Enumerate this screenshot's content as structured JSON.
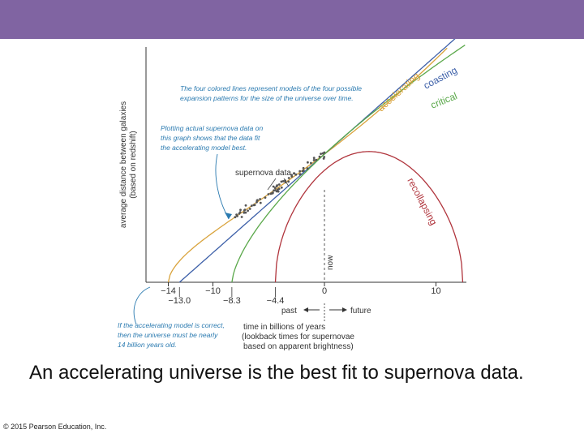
{
  "slide": {
    "caption": "An accelerating universe is the best fit to supernova data.",
    "copyright": "© 2015 Pearson Education, Inc.",
    "header_color": "#8064a2"
  },
  "chart_data": {
    "type": "line",
    "ylabel_line1": "average distance between galaxies",
    "ylabel_line2": "(based on redshift)",
    "xlabel_lines": [
      "time in billions of years",
      "(lookback times for supernovae",
      "based on apparent brightness)"
    ],
    "x_ticks_top": [
      "−14",
      "−10",
      "0",
      "10"
    ],
    "x_ticks_top_values": [
      -14,
      -10,
      0,
      10
    ],
    "x_ticks_bottom": [
      "−13.0",
      "−8.3",
      "−4.4"
    ],
    "x_ticks_bottom_values": [
      -13.0,
      -8.3,
      -4.4
    ],
    "now_label": "now",
    "past_label": "past",
    "future_label": "future",
    "supernova_label": "supernova data",
    "xlim": [
      -15.5,
      13
    ],
    "series": [
      {
        "name": "accelerating",
        "color": "#d9a33c",
        "start": -14,
        "shape": "accelerating"
      },
      {
        "name": "coasting",
        "color": "#3c5fa8",
        "start": -13.0,
        "shape": "coasting"
      },
      {
        "name": "critical",
        "color": "#5aa84a",
        "start": -8.3,
        "shape": "critical"
      },
      {
        "name": "recollapsing",
        "color": "#b0343c",
        "start": -4.4,
        "shape": "recollapsing"
      }
    ],
    "annotations": {
      "models": [
        "The four colored lines represent models of the four possible",
        "expansion patterns for the size of the universe over time."
      ],
      "data_fit": [
        "Plotting actual supernova data on",
        "this graph shows that the data fit",
        "the accelerating model best."
      ],
      "age": [
        "If the accelerating model is correct,",
        "then the universe must be nearly",
        "14 billion years old."
      ]
    }
  }
}
